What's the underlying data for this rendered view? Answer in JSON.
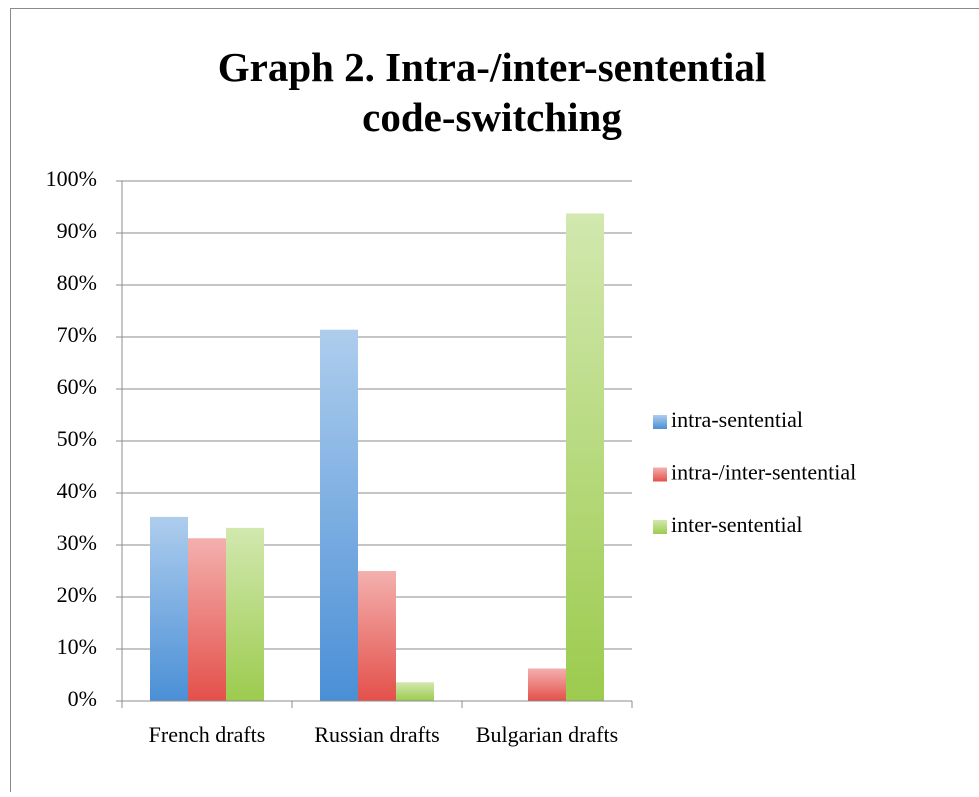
{
  "chart_data": {
    "type": "bar",
    "title": "Graph 2. Intra-/inter-sentential code-switching",
    "categories": [
      "French drafts",
      "Russian drafts",
      "Bulgarian drafts"
    ],
    "series": [
      {
        "name": "intra-sentential",
        "color": "#4a8fd6",
        "values": [
          35.4,
          71.4,
          0
        ]
      },
      {
        "name": "intra-/inter-sentential",
        "color": "#e4504a",
        "values": [
          31.3,
          25,
          6.25
        ]
      },
      {
        "name": "inter-sentential",
        "color": "#9ccb4e",
        "values": [
          33.3,
          3.6,
          93.75
        ]
      }
    ],
    "ylim": [
      0,
      100
    ],
    "yticks": [
      {
        "value": 0,
        "label": "0%"
      },
      {
        "value": 10,
        "label": "10%"
      },
      {
        "value": 20,
        "label": "20%"
      },
      {
        "value": 30,
        "label": "30%"
      },
      {
        "value": 40,
        "label": "40%"
      },
      {
        "value": 50,
        "label": "50%"
      },
      {
        "value": 60,
        "label": "60%"
      },
      {
        "value": 70,
        "label": "70%"
      },
      {
        "value": 80,
        "label": "80%"
      },
      {
        "value": 90,
        "label": "90%"
      },
      {
        "value": 100,
        "label": "100%"
      }
    ],
    "grid": true,
    "legend": "right"
  }
}
